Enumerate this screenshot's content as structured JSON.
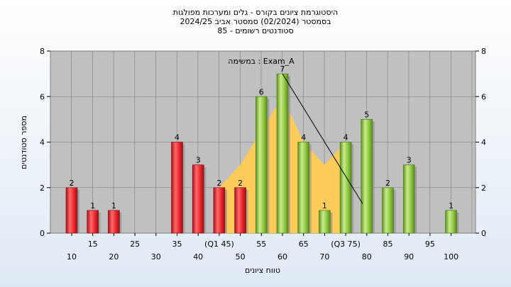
{
  "chart_data": {
    "type": "bar",
    "title_lines": [
      "היסטוגרמת ציונים בקורס - גלים ומערכות מפולגות",
      "בסמסטר  (02/2024)  סמסטר אביב 2024/25",
      "סטודנטים רשומים - 85"
    ],
    "subtitle": "במשימה : Exam_A",
    "xlabel": "טווח ציונים",
    "ylabel": "מספר סטודנטים",
    "ylim": [
      0,
      8
    ],
    "y_ticks": [
      0,
      2,
      4,
      6,
      8
    ],
    "grid": true,
    "x_ticks": [
      {
        "x": 10,
        "label": "10"
      },
      {
        "x": 15,
        "label": "15"
      },
      {
        "x": 20,
        "label": "20"
      },
      {
        "x": 25,
        "label": "25"
      },
      {
        "x": 30,
        "label": "30"
      },
      {
        "x": 35,
        "label": "35"
      },
      {
        "x": 40,
        "label": "40"
      },
      {
        "x": 45,
        "label": "(Q1 45)"
      },
      {
        "x": 50,
        "label": "50"
      },
      {
        "x": 55,
        "label": "55"
      },
      {
        "x": 60,
        "label": "60"
      },
      {
        "x": 65,
        "label": "65"
      },
      {
        "x": 70,
        "label": "70"
      },
      {
        "x": 75,
        "label": "(Q3 75)"
      },
      {
        "x": 80,
        "label": "80"
      },
      {
        "x": 85,
        "label": "85"
      },
      {
        "x": 90,
        "label": "90"
      },
      {
        "x": 95,
        "label": "95"
      },
      {
        "x": 100,
        "label": "100"
      }
    ],
    "bars": [
      {
        "x": 10,
        "value": 2,
        "label": "2"
      },
      {
        "x": 15,
        "value": 1,
        "label": "1"
      },
      {
        "x": 20,
        "value": 1,
        "label": "1"
      },
      {
        "x": 35,
        "value": 4,
        "label": "4"
      },
      {
        "x": 40,
        "value": 3,
        "label": "3"
      },
      {
        "x": 45,
        "value": 2,
        "label": "2"
      },
      {
        "x": 50,
        "value": 2,
        "label": "2"
      },
      {
        "x": 55,
        "value": 6,
        "label": "6"
      },
      {
        "x": 60,
        "value": 7,
        "label": "7"
      },
      {
        "x": 65,
        "value": 4,
        "label": "4"
      },
      {
        "x": 70,
        "value": 1,
        "label": "1"
      },
      {
        "x": 75,
        "value": 4,
        "label": "4"
      },
      {
        "x": 80,
        "value": 5,
        "label": "5"
      },
      {
        "x": 85,
        "value": 2,
        "label": "2"
      },
      {
        "x": 90,
        "value": 3,
        "label": "3"
      },
      {
        "x": 100,
        "value": 1,
        "label": "1"
      }
    ],
    "pass_threshold": 55,
    "quartile_area": [
      {
        "x": 45,
        "y": 2
      },
      {
        "x": 50,
        "y": 3
      },
      {
        "x": 55,
        "y": 4.5
      },
      {
        "x": 60,
        "y": 6
      },
      {
        "x": 65,
        "y": 4
      },
      {
        "x": 70,
        "y": 3
      },
      {
        "x": 75,
        "y": 4
      }
    ],
    "colors": {
      "fail_bar": "#e8242b",
      "pass_bar": "#8dc63f",
      "quartile_area": "#ffcc55",
      "plot_bg": "#c0c0c0",
      "grid": "#7f7f7f"
    }
  }
}
